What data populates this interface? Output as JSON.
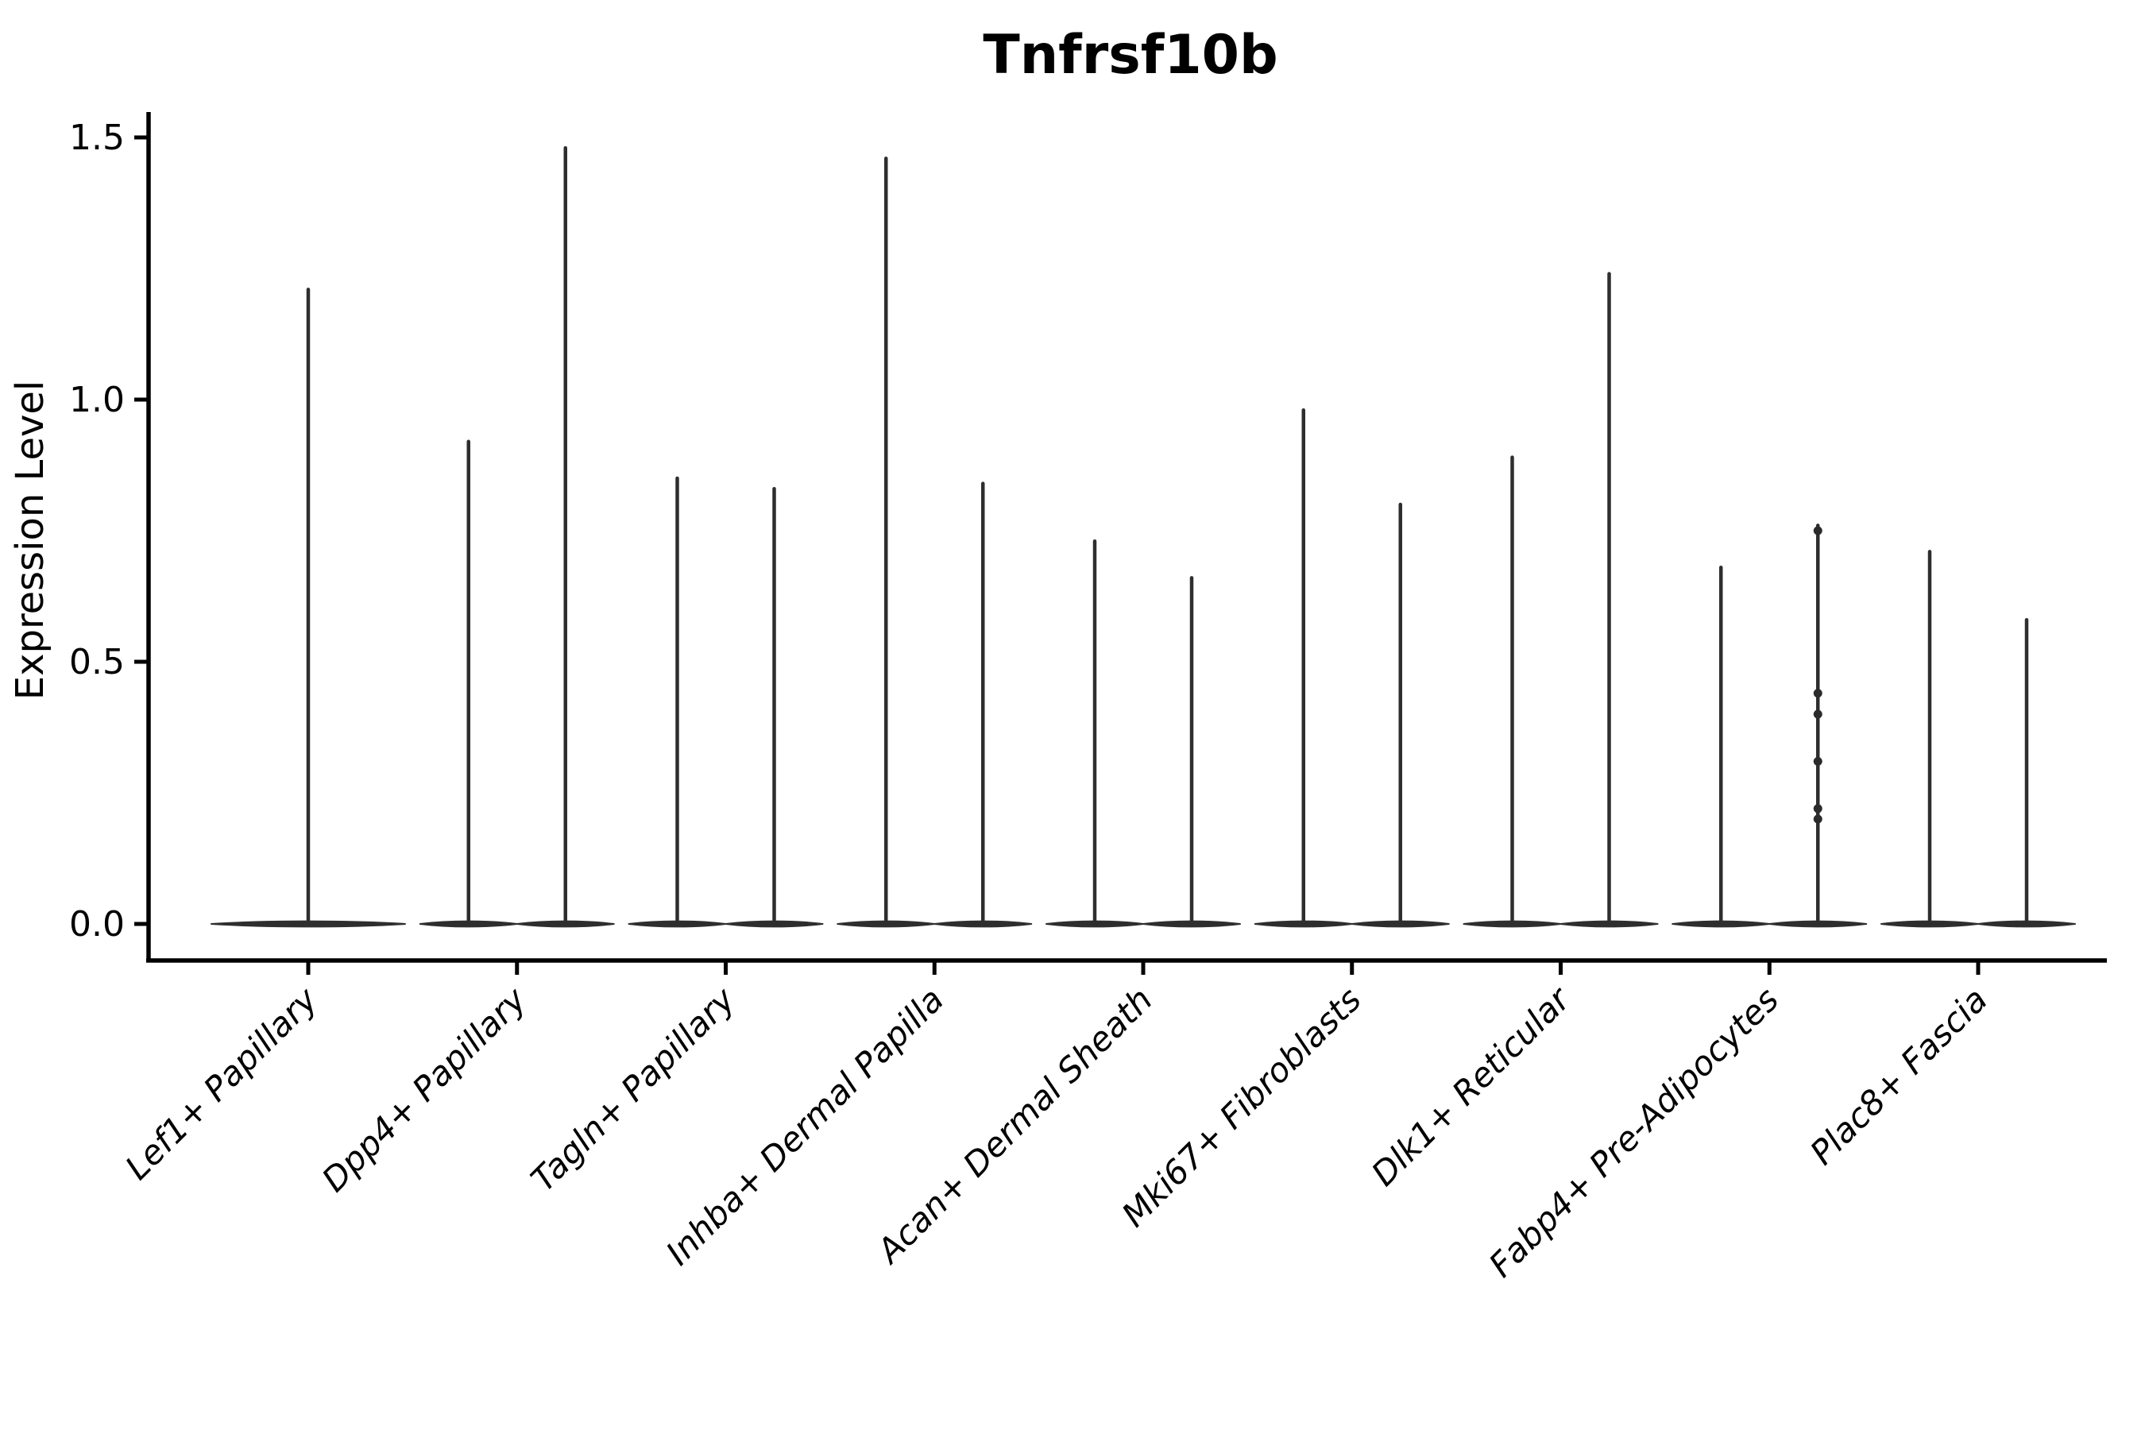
{
  "title": "Tnfrsf10b",
  "y_axis": {
    "label": "Expression Level",
    "tick_labels": [
      "0.0",
      "0.5",
      "1.0",
      "1.5"
    ]
  },
  "x_axis": {
    "label": "",
    "tick_labels": [
      "Lef1+ Papillary",
      "Dpp4+ Papillary",
      "Tagln+ Papillary",
      "Inhba+ Dermal Papilla",
      "Acan+ Dermal Sheath",
      "Mki67+ Fibroblasts",
      "Dlk1+ Reticular",
      "Fabp4+ Pre-Adipocytes",
      "Plac8+ Fascia"
    ]
  },
  "chart_data": {
    "type": "violin",
    "title": "Tnfrsf10b",
    "xlabel": "",
    "ylabel": "Expression Level",
    "ylim": [
      -0.07,
      1.56
    ],
    "yticks": [
      0.0,
      0.5,
      1.0,
      1.5
    ],
    "grid": false,
    "legend": "none",
    "shape_note": "Each violin is dominated by zeros: a wide flat base at y=0 with a single hair-thin spike rising to the maximum expression value. Categories 2-9 each contain two side-by-side violins; category 1 has one full-width violin.",
    "categories": [
      "Lef1+ Papillary",
      "Dpp4+ Papillary",
      "Tagln+ Papillary",
      "Inhba+ Dermal Papilla",
      "Acan+ Dermal Sheath",
      "Mki67+ Fibroblasts",
      "Dlk1+ Reticular",
      "Fabp4+ Pre-Adipocytes",
      "Plac8+ Fascia"
    ],
    "series": [
      {
        "category": "Lef1+ Papillary",
        "violins": [
          {
            "base": 0,
            "max": 1.21
          }
        ]
      },
      {
        "category": "Dpp4+ Papillary",
        "violins": [
          {
            "base": 0,
            "max": 0.92
          },
          {
            "base": 0,
            "max": 1.48
          }
        ]
      },
      {
        "category": "Tagln+ Papillary",
        "violins": [
          {
            "base": 0,
            "max": 0.85
          },
          {
            "base": 0,
            "max": 0.83
          }
        ]
      },
      {
        "category": "Inhba+ Dermal Papilla",
        "violins": [
          {
            "base": 0,
            "max": 1.46
          },
          {
            "base": 0,
            "max": 0.84
          }
        ]
      },
      {
        "category": "Acan+ Dermal Sheath",
        "violins": [
          {
            "base": 0,
            "max": 0.73
          },
          {
            "base": 0,
            "max": 0.66
          }
        ]
      },
      {
        "category": "Mki67+ Fibroblasts",
        "violins": [
          {
            "base": 0,
            "max": 0.98
          },
          {
            "base": 0,
            "max": 0.8
          }
        ]
      },
      {
        "category": "Dlk1+ Reticular",
        "violins": [
          {
            "base": 0,
            "max": 0.89
          },
          {
            "base": 0,
            "max": 1.24
          }
        ]
      },
      {
        "category": "Fabp4+ Pre-Adipocytes",
        "violins": [
          {
            "base": 0,
            "max": 0.68
          },
          {
            "base": 0,
            "max": 0.76
          }
        ]
      },
      {
        "category": "Plac8+ Fascia",
        "violins": [
          {
            "base": 0,
            "max": 0.71
          },
          {
            "base": 0,
            "max": 0.58
          }
        ]
      }
    ],
    "jitter_points": [
      {
        "category": "Fabp4+ Pre-Adipocytes",
        "violin_index": 1,
        "values": [
          0.75,
          0.44,
          0.4,
          0.31,
          0.22,
          0.2
        ]
      }
    ]
  },
  "colors": {
    "violin": "#2e2e2e",
    "axis": "#000000",
    "text": "#000000",
    "background": "#ffffff"
  }
}
